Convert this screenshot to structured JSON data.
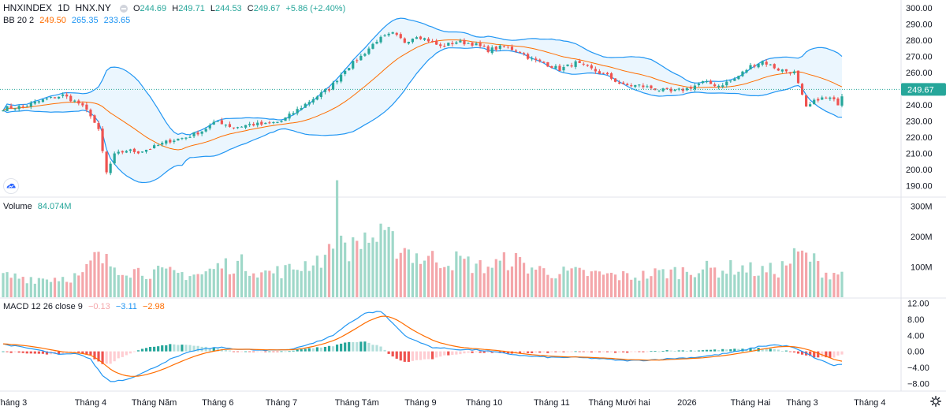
{
  "header": {
    "symbol": "HNXINDEX",
    "interval": "1D",
    "exchange": "HNX.NY",
    "open_label": "O",
    "open": "244.69",
    "high_label": "H",
    "high": "249.71",
    "low_label": "L",
    "low": "244.53",
    "close_label": "C",
    "close": "249.67",
    "change": "+5.86 (+2.40%)"
  },
  "bb_legend": {
    "label": "BB 20 2",
    "basis": "249.50",
    "upper": "265.35",
    "lower": "233.65"
  },
  "volume_legend": {
    "label": "Volume",
    "value": "84.074M"
  },
  "macd_legend": {
    "label": "MACD 12 26 close 9",
    "hist": "−0.13",
    "macd": "−3.11",
    "signal": "−2.98"
  },
  "colors": {
    "up": "#26a69a",
    "down": "#ef5350",
    "up_vol": "#9fd8c9",
    "down_vol": "#f4a6aa",
    "bb_band": "#2196f3",
    "bb_basis": "#ff6d00",
    "bb_fill": "#e3f2fd",
    "macd_line": "#2196f3",
    "signal_line": "#ff6d00",
    "hist_up_strong": "#26a69a",
    "hist_up_weak": "#b2dfdb",
    "hist_down_strong": "#ef5350",
    "hist_down_weak": "#ffcdd2",
    "last_price_bg": "#26a69a"
  },
  "chart_data": {
    "type": "candlestick",
    "title": "HNXINDEX 1D HNX.NY",
    "x_labels": [
      "Tháng 3",
      "Tháng 4",
      "Tháng Năm",
      "Tháng 6",
      "Tháng 7",
      "Tháng Tám",
      "Tháng 9",
      "Tháng 10",
      "Tháng 11",
      "Tháng Mười hai",
      "2026",
      "Tháng Hai",
      "Tháng 3",
      "Tháng 4"
    ],
    "x_label_bar_index": [
      2,
      22,
      38,
      54,
      70,
      89,
      105,
      121,
      138,
      155,
      172,
      188,
      201,
      218
    ],
    "bar_count": 212,
    "price_axis": {
      "ticks": [
        "300.00",
        "290.00",
        "280.00",
        "270.00",
        "260.00",
        "250.00",
        "240.00",
        "230.00",
        "220.00",
        "210.00",
        "200.00",
        "190.00"
      ],
      "ylim": [
        185,
        301
      ]
    },
    "last_price": "249.67",
    "volume_axis": {
      "ticks": [
        "300M",
        "200M",
        "100M"
      ],
      "ylim": [
        0,
        320
      ]
    },
    "macd_axis": {
      "ticks": [
        "12.00",
        "8.00",
        "4.00",
        "0.00",
        "−4.00",
        "−8.00"
      ],
      "ylim": [
        -9.5,
        12.5
      ]
    },
    "close_anchors": [
      [
        0,
        238
      ],
      [
        5,
        239
      ],
      [
        10,
        243
      ],
      [
        15,
        246
      ],
      [
        19,
        241
      ],
      [
        22,
        234
      ],
      [
        24,
        224
      ],
      [
        26,
        198
      ],
      [
        28,
        209
      ],
      [
        31,
        212
      ],
      [
        34,
        211
      ],
      [
        38,
        214
      ],
      [
        42,
        218
      ],
      [
        46,
        220
      ],
      [
        50,
        224
      ],
      [
        54,
        230
      ],
      [
        58,
        226
      ],
      [
        62,
        228
      ],
      [
        66,
        228
      ],
      [
        70,
        230
      ],
      [
        74,
        237
      ],
      [
        78,
        244
      ],
      [
        82,
        250
      ],
      [
        86,
        262
      ],
      [
        90,
        270
      ],
      [
        94,
        280
      ],
      [
        98,
        284
      ],
      [
        101,
        279
      ],
      [
        104,
        283
      ],
      [
        107,
        280
      ],
      [
        110,
        276
      ],
      [
        114,
        279
      ],
      [
        118,
        278
      ],
      [
        122,
        274
      ],
      [
        126,
        276
      ],
      [
        130,
        273
      ],
      [
        133,
        268
      ],
      [
        136,
        266
      ],
      [
        140,
        262
      ],
      [
        144,
        266
      ],
      [
        148,
        262
      ],
      [
        152,
        258
      ],
      [
        156,
        252
      ],
      [
        160,
        252
      ],
      [
        164,
        250
      ],
      [
        168,
        248
      ],
      [
        172,
        250
      ],
      [
        176,
        254
      ],
      [
        180,
        252
      ],
      [
        184,
        256
      ],
      [
        188,
        264
      ],
      [
        191,
        267
      ],
      [
        195,
        262
      ],
      [
        199,
        260
      ],
      [
        202,
        238
      ],
      [
        205,
        244
      ],
      [
        208,
        244
      ],
      [
        210,
        241
      ],
      [
        212,
        249.67
      ]
    ],
    "volume_anchors_m": [
      [
        0,
        70
      ],
      [
        10,
        62
      ],
      [
        20,
        70
      ],
      [
        23,
        130
      ],
      [
        27,
        110
      ],
      [
        32,
        90
      ],
      [
        40,
        80
      ],
      [
        50,
        75
      ],
      [
        55,
        105
      ],
      [
        60,
        110
      ],
      [
        66,
        80
      ],
      [
        72,
        90
      ],
      [
        78,
        120
      ],
      [
        82,
        140
      ],
      [
        84,
        310
      ],
      [
        86,
        170
      ],
      [
        88,
        160
      ],
      [
        91,
        200
      ],
      [
        95,
        190
      ],
      [
        100,
        170
      ],
      [
        105,
        130
      ],
      [
        110,
        125
      ],
      [
        115,
        120
      ],
      [
        120,
        100
      ],
      [
        125,
        110
      ],
      [
        128,
        130
      ],
      [
        130,
        110
      ],
      [
        135,
        90
      ],
      [
        140,
        80
      ],
      [
        145,
        80
      ],
      [
        150,
        75
      ],
      [
        155,
        70
      ],
      [
        160,
        70
      ],
      [
        165,
        80
      ],
      [
        170,
        85
      ],
      [
        175,
        95
      ],
      [
        180,
        90
      ],
      [
        185,
        100
      ],
      [
        190,
        85
      ],
      [
        195,
        90
      ],
      [
        200,
        140
      ],
      [
        203,
        130
      ],
      [
        207,
        80
      ],
      [
        212,
        84
      ]
    ],
    "macd_anchors": [
      [
        0,
        1.8
      ],
      [
        8,
        0.5
      ],
      [
        14,
        -0.8
      ],
      [
        19,
        -0.6
      ],
      [
        22,
        -2
      ],
      [
        25,
        -6
      ],
      [
        27,
        -7.5
      ],
      [
        31,
        -7
      ],
      [
        36,
        -5
      ],
      [
        42,
        -2
      ],
      [
        48,
        0.2
      ],
      [
        54,
        1
      ],
      [
        60,
        0.5
      ],
      [
        66,
        0.2
      ],
      [
        72,
        0.5
      ],
      [
        78,
        2
      ],
      [
        83,
        4
      ],
      [
        87,
        7
      ],
      [
        91,
        9.5
      ],
      [
        95,
        10
      ],
      [
        98,
        7
      ],
      [
        101,
        4
      ],
      [
        104,
        2.5
      ],
      [
        108,
        1
      ],
      [
        114,
        0.5
      ],
      [
        120,
        0.3
      ],
      [
        126,
        -0.5
      ],
      [
        132,
        -1.2
      ],
      [
        138,
        -1.5
      ],
      [
        144,
        -1.5
      ],
      [
        150,
        -1.8
      ],
      [
        156,
        -2.3
      ],
      [
        162,
        -2.2
      ],
      [
        168,
        -1.8
      ],
      [
        174,
        -1.5
      ],
      [
        180,
        -0.8
      ],
      [
        186,
        0.2
      ],
      [
        190,
        1.2
      ],
      [
        194,
        1.6
      ],
      [
        198,
        1.2
      ],
      [
        202,
        -0.5
      ],
      [
        205,
        -2
      ],
      [
        209,
        -3.5
      ],
      [
        212,
        -3.11
      ]
    ]
  }
}
